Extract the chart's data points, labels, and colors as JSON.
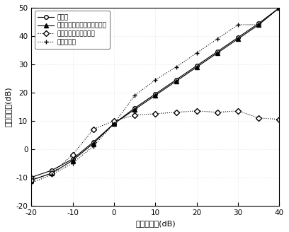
{
  "snr_x": [
    -20,
    -15,
    -10,
    -5,
    0,
    5,
    10,
    15,
    20,
    25,
    30,
    35,
    40
  ],
  "optimal": [
    -10,
    -7.5,
    -3.5,
    2.5,
    9,
    14.5,
    19.5,
    24.5,
    29.5,
    34.5,
    39.5,
    44.5,
    50
  ],
  "shrinkage": [
    -11,
    -8.5,
    -4,
    2,
    9,
    14,
    19,
    24,
    29,
    34,
    39,
    44,
    50
  ],
  "worstcase": [
    -11,
    -8.5,
    -2,
    7,
    10,
    12,
    12.5,
    13,
    13.5,
    13,
    13.5,
    11,
    10.5
  ],
  "proposed": [
    -12,
    -9,
    -5,
    1,
    9,
    19,
    24.5,
    29,
    34,
    39,
    44,
    44,
    50
  ],
  "legend_optimal": "最优値",
  "legend_shrinkage": "基于缩减估计的波束形成方法",
  "legend_worstcase": "最差情况性能优化方法",
  "legend_proposed": "本发明方法",
  "xlabel": "输入信噪比(dB)",
  "ylabel": "输出信噪比(dB)",
  "xlim": [
    -20,
    40
  ],
  "ylim": [
    -20,
    50
  ],
  "xticks": [
    -20,
    -10,
    0,
    10,
    20,
    30,
    40
  ],
  "yticks": [
    -20,
    -10,
    0,
    10,
    20,
    30,
    40,
    50
  ]
}
